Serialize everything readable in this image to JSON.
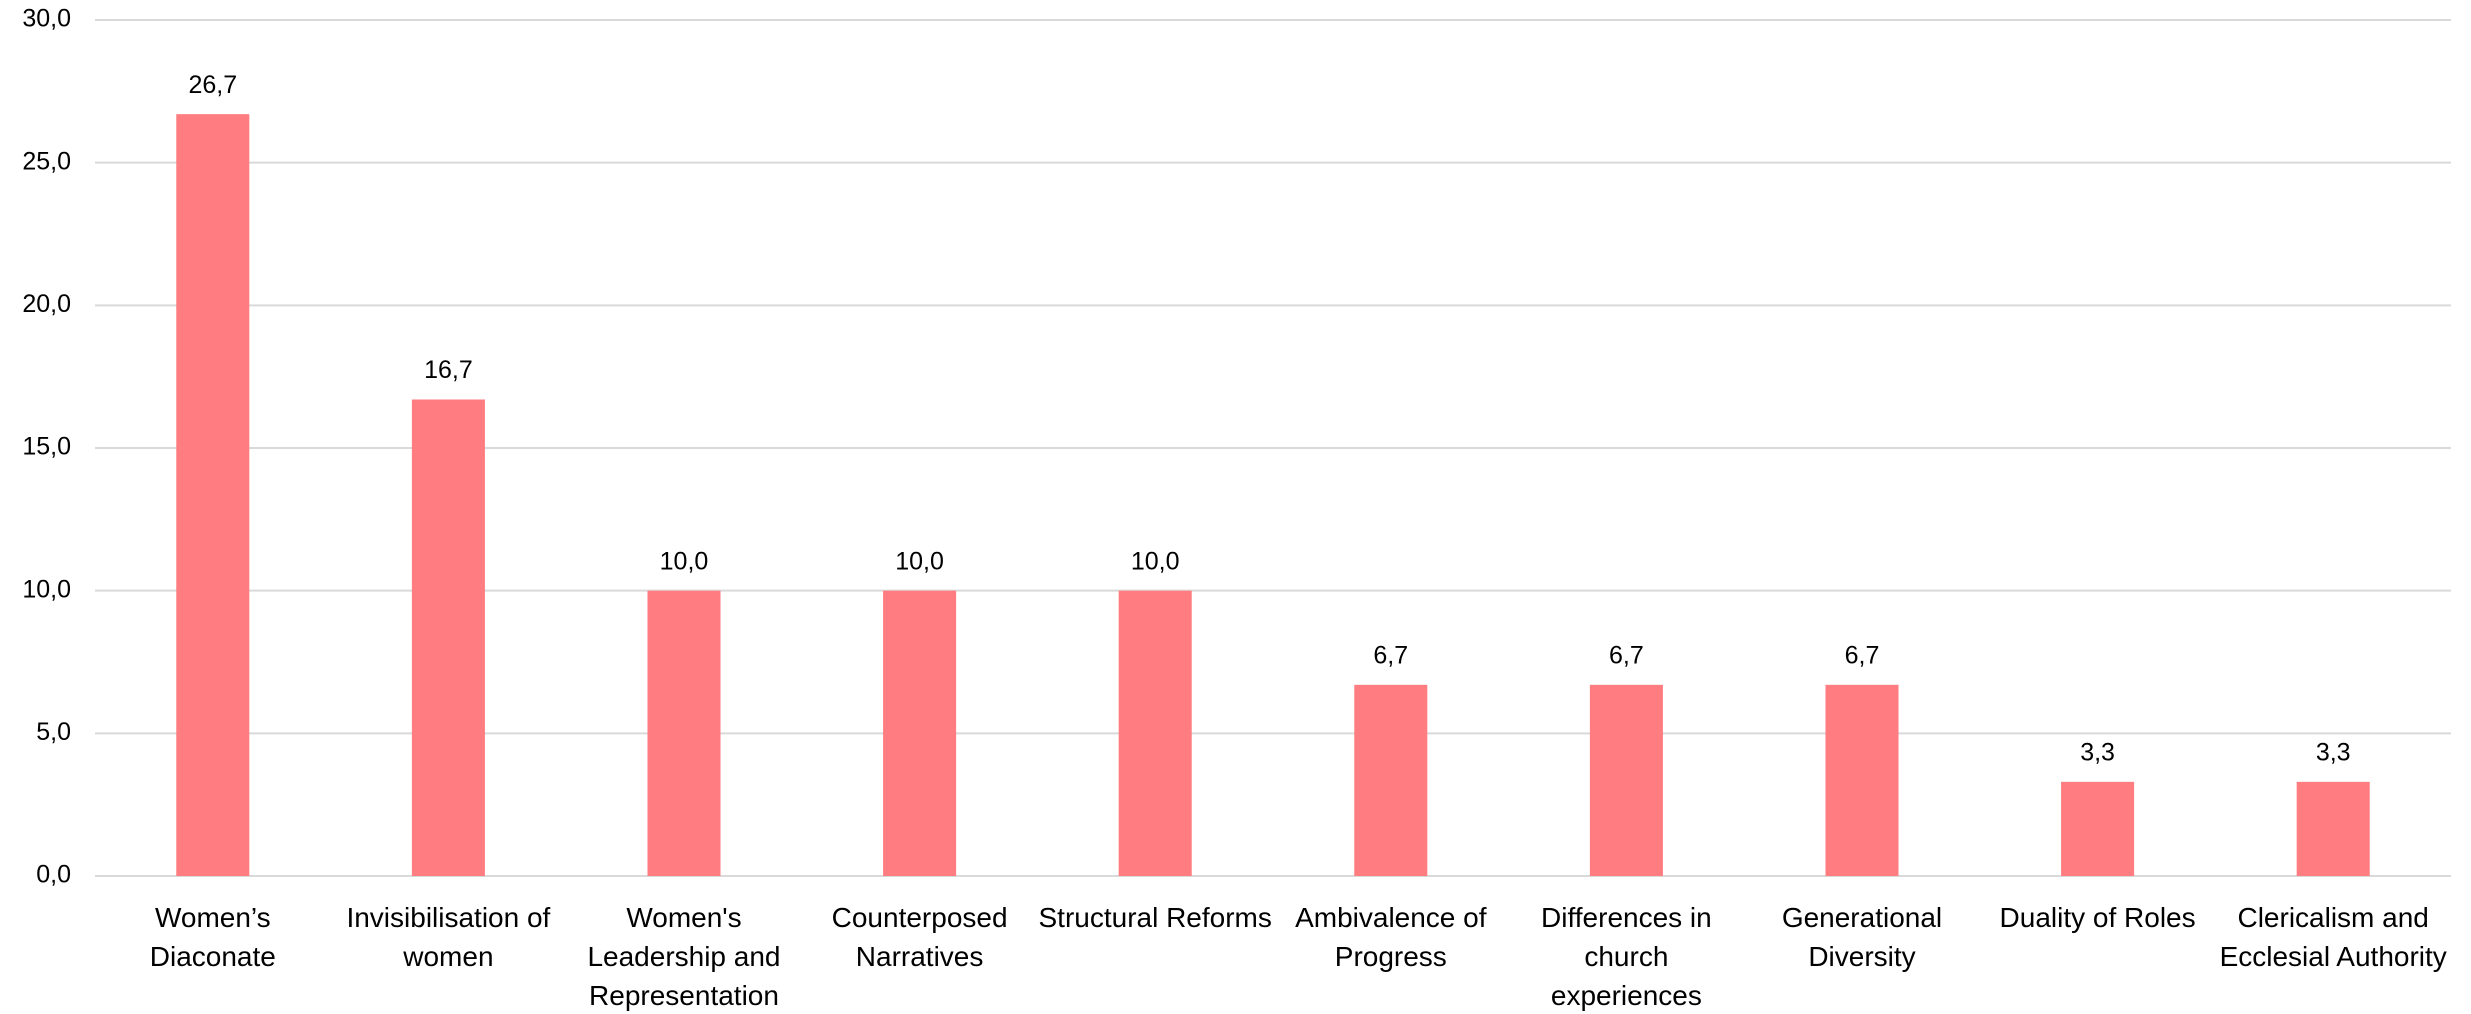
{
  "chart_data": {
    "type": "bar",
    "categories": [
      "Women’s Diaconate",
      "Invisibilisation of women",
      "Women's Leadership and Representation",
      "Counterposed Narratives",
      "Structural Reforms",
      "Ambivalence of Progress",
      "Differences in church experiences",
      "Generational Diversity",
      "Duality of Roles",
      "Clericalism and Ecclesial Authority"
    ],
    "values": [
      26.7,
      16.7,
      10.0,
      10.0,
      10.0,
      6.7,
      6.7,
      6.7,
      3.3,
      3.3
    ],
    "value_labels": [
      "26,7",
      "16,7",
      "10,0",
      "10,0",
      "10,0",
      "6,7",
      "6,7",
      "6,7",
      "3,3",
      "3,3"
    ],
    "color": "#ff7c80",
    "ylim": [
      0,
      30
    ],
    "yticks": [
      {
        "value": 0,
        "label": "0,0"
      },
      {
        "value": 5,
        "label": "5,0"
      },
      {
        "value": 10,
        "label": "10,0"
      },
      {
        "value": 15,
        "label": "15,0"
      },
      {
        "value": 20,
        "label": "20,0"
      },
      {
        "value": 25,
        "label": "25,0"
      },
      {
        "value": 30,
        "label": "30,0"
      }
    ],
    "grid": true
  }
}
